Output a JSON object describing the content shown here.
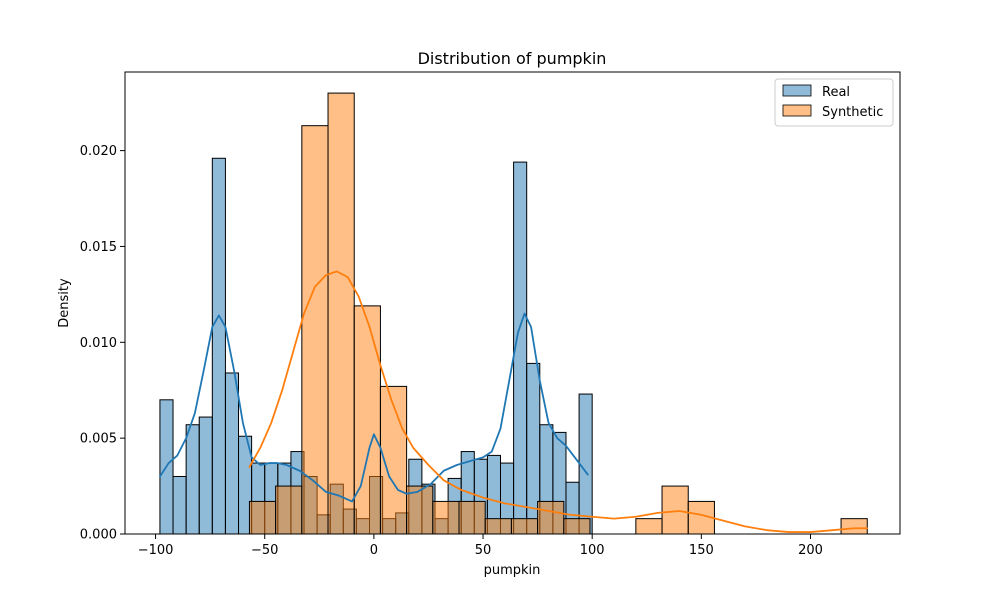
{
  "chart_data": {
    "type": "histogram",
    "title": "Distribution of pumpkin",
    "xlabel": "pumpkin",
    "ylabel": "Density",
    "xlim": [
      -114,
      241
    ],
    "ylim": [
      0,
      0.0241
    ],
    "xticks": [
      -100,
      -50,
      0,
      50,
      100,
      150,
      200
    ],
    "xtick_labels": [
      "−100",
      "−50",
      "0",
      "50",
      "100",
      "150",
      "200"
    ],
    "yticks": [
      0,
      0.005,
      0.01,
      0.015,
      0.02
    ],
    "ytick_labels": [
      "0.000",
      "0.005",
      "0.010",
      "0.015",
      "0.020"
    ],
    "grid": false,
    "legend_position": "top-right",
    "series": [
      {
        "name": "Real",
        "color": "#1f77b4",
        "bins": [
          {
            "x0": -98,
            "x1": -92,
            "density": 0.007
          },
          {
            "x0": -92,
            "x1": -86,
            "density": 0.003
          },
          {
            "x0": -86,
            "x1": -80,
            "density": 0.0057
          },
          {
            "x0": -80,
            "x1": -74,
            "density": 0.0061
          },
          {
            "x0": -74,
            "x1": -68,
            "density": 0.0196
          },
          {
            "x0": -68,
            "x1": -62,
            "density": 0.0084
          },
          {
            "x0": -62,
            "x1": -56,
            "density": 0.0051
          },
          {
            "x0": -56,
            "x1": -50,
            "density": 0.0037
          },
          {
            "x0": -50,
            "x1": -44,
            "density": 0.0037
          },
          {
            "x0": -44,
            "x1": -38,
            "density": 0.0037
          },
          {
            "x0": -38,
            "x1": -32,
            "density": 0.0043
          },
          {
            "x0": -32,
            "x1": -26,
            "density": 0.003
          },
          {
            "x0": -26,
            "x1": -20,
            "density": 0.001
          },
          {
            "x0": -20,
            "x1": -14,
            "density": 0.0026
          },
          {
            "x0": -14,
            "x1": -8,
            "density": 0.0013
          },
          {
            "x0": -8,
            "x1": -2,
            "density": 0.0008
          },
          {
            "x0": -2,
            "x1": 4,
            "density": 0.003
          },
          {
            "x0": 4,
            "x1": 10,
            "density": 0.0008
          },
          {
            "x0": 10,
            "x1": 16,
            "density": 0.0011
          },
          {
            "x0": 16,
            "x1": 22,
            "density": 0.0039
          },
          {
            "x0": 22,
            "x1": 28,
            "density": 0.0026
          },
          {
            "x0": 28,
            "x1": 34,
            "density": 0.0008
          },
          {
            "x0": 34,
            "x1": 40,
            "density": 0.0029
          },
          {
            "x0": 40,
            "x1": 46,
            "density": 0.0043
          },
          {
            "x0": 46,
            "x1": 52,
            "density": 0.0039
          },
          {
            "x0": 52,
            "x1": 58,
            "density": 0.0041
          },
          {
            "x0": 58,
            "x1": 64,
            "density": 0.0037
          },
          {
            "x0": 64,
            "x1": 70,
            "density": 0.0194
          },
          {
            "x0": 70,
            "x1": 76,
            "density": 0.0089
          },
          {
            "x0": 76,
            "x1": 82,
            "density": 0.0057
          },
          {
            "x0": 82,
            "x1": 88,
            "density": 0.0053
          },
          {
            "x0": 88,
            "x1": 94,
            "density": 0.0027
          },
          {
            "x0": 94,
            "x1": 100,
            "density": 0.0073
          }
        ],
        "kde": [
          [
            -98,
            0.003
          ],
          [
            -94,
            0.0037
          ],
          [
            -90,
            0.0041
          ],
          [
            -86,
            0.005
          ],
          [
            -82,
            0.0063
          ],
          [
            -78,
            0.0085
          ],
          [
            -74,
            0.0108
          ],
          [
            -71,
            0.0114
          ],
          [
            -68,
            0.0108
          ],
          [
            -64,
            0.0085
          ],
          [
            -60,
            0.0058
          ],
          [
            -56,
            0.004
          ],
          [
            -52,
            0.0036
          ],
          [
            -48,
            0.0037
          ],
          [
            -44,
            0.0037
          ],
          [
            -40,
            0.0036
          ],
          [
            -34,
            0.0033
          ],
          [
            -28,
            0.0028
          ],
          [
            -22,
            0.0022
          ],
          [
            -16,
            0.002
          ],
          [
            -10,
            0.0017
          ],
          [
            -6,
            0.0025
          ],
          [
            -2,
            0.0045
          ],
          [
            0,
            0.0052
          ],
          [
            3,
            0.0045
          ],
          [
            7,
            0.003
          ],
          [
            11,
            0.0023
          ],
          [
            15,
            0.0021
          ],
          [
            20,
            0.0022
          ],
          [
            26,
            0.0026
          ],
          [
            32,
            0.0033
          ],
          [
            38,
            0.0036
          ],
          [
            44,
            0.0038
          ],
          [
            50,
            0.004
          ],
          [
            54,
            0.0043
          ],
          [
            58,
            0.0055
          ],
          [
            62,
            0.008
          ],
          [
            66,
            0.0105
          ],
          [
            69,
            0.0115
          ],
          [
            72,
            0.0108
          ],
          [
            76,
            0.008
          ],
          [
            80,
            0.0058
          ],
          [
            84,
            0.005
          ],
          [
            88,
            0.0046
          ],
          [
            92,
            0.004
          ],
          [
            96,
            0.0034
          ],
          [
            98,
            0.0031
          ]
        ]
      },
      {
        "name": "Synthetic",
        "color": "#ff7f0e",
        "bins": [
          {
            "x0": -57,
            "x1": -45,
            "density": 0.0017
          },
          {
            "x0": -45,
            "x1": -33,
            "density": 0.0025
          },
          {
            "x0": -33,
            "x1": -21,
            "density": 0.0213
          },
          {
            "x0": -21,
            "x1": -9,
            "density": 0.023
          },
          {
            "x0": -9,
            "x1": 3,
            "density": 0.0119
          },
          {
            "x0": 3,
            "x1": 15,
            "density": 0.0077
          },
          {
            "x0": 15,
            "x1": 27,
            "density": 0.0025
          },
          {
            "x0": 27,
            "x1": 39,
            "density": 0.0017
          },
          {
            "x0": 39,
            "x1": 51,
            "density": 0.0017
          },
          {
            "x0": 51,
            "x1": 63,
            "density": 0.0008
          },
          {
            "x0": 63,
            "x1": 75,
            "density": 0.0008
          },
          {
            "x0": 75,
            "x1": 87,
            "density": 0.0017
          },
          {
            "x0": 87,
            "x1": 99,
            "density": 0.0008
          },
          {
            "x0": 120,
            "x1": 132,
            "density": 0.0008
          },
          {
            "x0": 132,
            "x1": 144,
            "density": 0.0025
          },
          {
            "x0": 144,
            "x1": 156,
            "density": 0.0017
          },
          {
            "x0": 214,
            "x1": 226,
            "density": 0.0008
          }
        ],
        "kde": [
          [
            -57,
            0.0035
          ],
          [
            -52,
            0.0045
          ],
          [
            -47,
            0.0058
          ],
          [
            -42,
            0.0075
          ],
          [
            -37,
            0.0095
          ],
          [
            -32,
            0.0115
          ],
          [
            -27,
            0.0129
          ],
          [
            -22,
            0.0135
          ],
          [
            -17,
            0.0137
          ],
          [
            -12,
            0.0134
          ],
          [
            -7,
            0.0124
          ],
          [
            -2,
            0.0108
          ],
          [
            3,
            0.0088
          ],
          [
            8,
            0.007
          ],
          [
            13,
            0.0055
          ],
          [
            18,
            0.0045
          ],
          [
            25,
            0.0036
          ],
          [
            32,
            0.0028
          ],
          [
            40,
            0.0023
          ],
          [
            50,
            0.0019
          ],
          [
            60,
            0.0016
          ],
          [
            70,
            0.0014
          ],
          [
            80,
            0.0012
          ],
          [
            90,
            0.001
          ],
          [
            100,
            0.0009
          ],
          [
            110,
            0.0008
          ],
          [
            120,
            0.0009
          ],
          [
            130,
            0.0011
          ],
          [
            140,
            0.0012
          ],
          [
            150,
            0.001
          ],
          [
            160,
            0.0007
          ],
          [
            170,
            0.0004
          ],
          [
            180,
            0.0002
          ],
          [
            190,
            0.0001
          ],
          [
            200,
            0.0001
          ],
          [
            210,
            0.0002
          ],
          [
            220,
            0.0003
          ],
          [
            226,
            0.0003
          ]
        ]
      }
    ]
  }
}
